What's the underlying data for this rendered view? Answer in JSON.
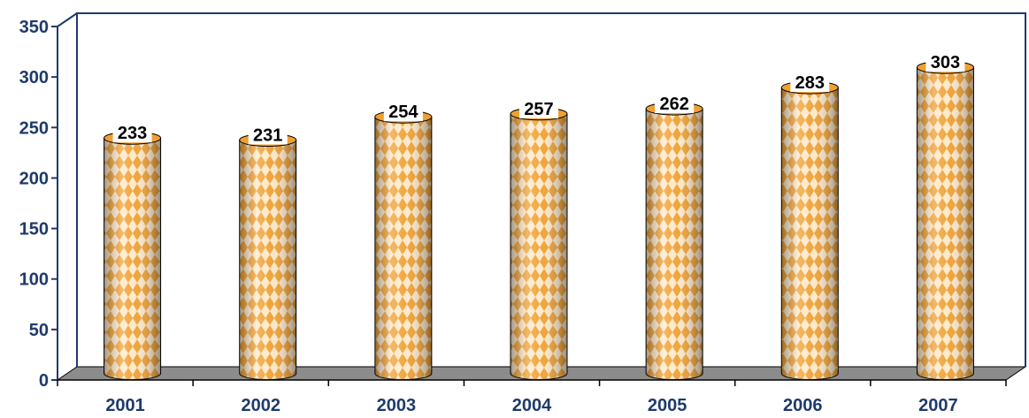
{
  "chart_data": {
    "type": "bar",
    "categories": [
      "2001",
      "2002",
      "2003",
      "2004",
      "2005",
      "2006",
      "2007"
    ],
    "values": [
      233,
      231,
      254,
      257,
      262,
      283,
      303
    ],
    "title": "",
    "xlabel": "",
    "ylabel": "",
    "ylim": [
      0,
      350
    ],
    "yticks": [
      "0",
      "50",
      "100",
      "150",
      "200",
      "250",
      "300",
      "350"
    ],
    "grid": false,
    "legend": "none",
    "bar_style": "3d-cylinder with diamond pattern",
    "colors": {
      "bar_primary": "#f0a030",
      "bar_secondary": "#ffe8c8",
      "axis": "#1f3a6b",
      "floor": "#8c8c8c",
      "tick_text": "#1f3a6b",
      "label_text": "#000000",
      "label_box": "#ffffff"
    }
  }
}
